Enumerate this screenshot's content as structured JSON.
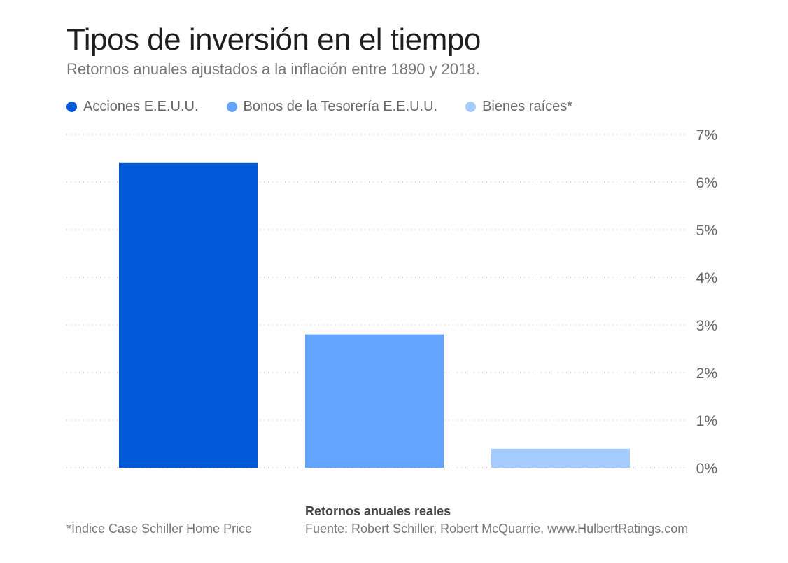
{
  "header": {
    "title": "Tipos de inversión en el tiempo",
    "subtitle": "Retornos anuales ajustados a la inflación entre 1890 y 2018."
  },
  "legend": [
    {
      "label": "Acciones E.E.U.U.",
      "color": "#0059d6"
    },
    {
      "label": "Bonos de la Tesorería E.E.U.U.",
      "color": "#63a4ff"
    },
    {
      "label": "Bienes raíces*",
      "color": "#a5ccff"
    }
  ],
  "footer": {
    "note": "*Índice Case Schiller Home Price",
    "heading": "Retornos anuales reales",
    "source": "Fuente: Robert Schiller, Robert McQuarrie, www.HulbertRatings.com"
  },
  "chart_data": {
    "type": "bar",
    "categories": [
      "Acciones E.E.U.U.",
      "Bonos de la Tesorería E.E.U.U.",
      "Bienes raíces*"
    ],
    "values": [
      6.4,
      2.8,
      0.4
    ],
    "colors": [
      "#0059d6",
      "#63a4ff",
      "#a5ccff"
    ],
    "unit": "%",
    "ylim": [
      0,
      7
    ],
    "yticks": [
      0,
      1,
      2,
      3,
      4,
      5,
      6,
      7
    ],
    "ytick_labels": [
      "0%",
      "1%",
      "2%",
      "3%",
      "4%",
      "5%",
      "6%",
      "7%"
    ],
    "y_axis_position": "right",
    "grid": true,
    "legend_position": "top-left"
  }
}
